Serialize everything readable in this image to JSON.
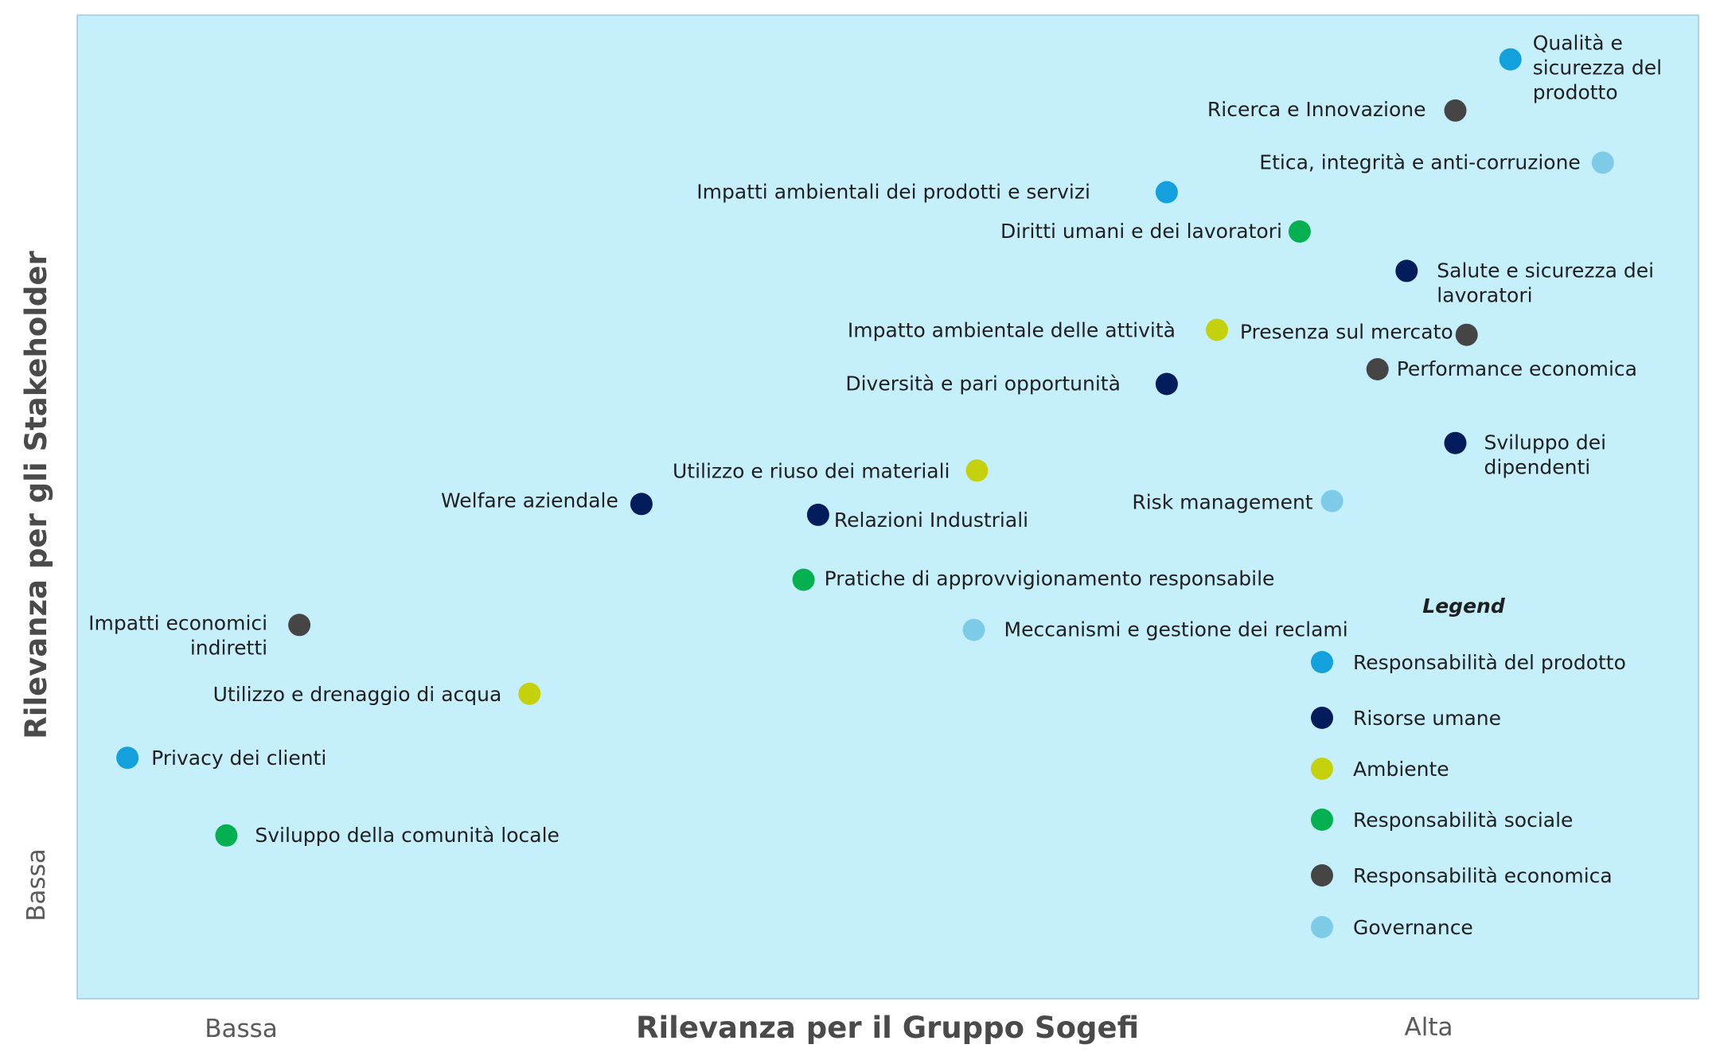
{
  "chart_data": {
    "type": "scatter",
    "xlabel": "Rilevanza per il Gruppo Sogefi",
    "ylabel": "Rilevanza per gli Stakeholder",
    "x_ticks": [
      "Bassa",
      "Alta"
    ],
    "y_ticks": [
      "Bassa"
    ],
    "xlim": [
      0,
      100
    ],
    "ylim": [
      0,
      100
    ],
    "legend": {
      "title": "Legend",
      "placement": "bottom-right"
    },
    "colors": {
      "Responsabilità del prodotto": "#13a0dc",
      "Risorse umane": "#031d5c",
      "Ambiente": "#c5d10c",
      "Responsabilità sociale": "#05b050",
      "Responsabilità economica": "#454545",
      "Governance": "#7ecbe8"
    },
    "series": [
      {
        "name": "Responsabilità del prodotto",
        "points": [
          {
            "label": "Qualità e sicurezza del prodotto",
            "x": 88.4,
            "y": 95.5
          },
          {
            "label": "Impatti ambientali dei prodotti e servizi",
            "x": 67.2,
            "y": 82.0
          },
          {
            "label": "Privacy dei clienti",
            "x": 3.1,
            "y": 24.5
          }
        ]
      },
      {
        "name": "Risorse umane",
        "points": [
          {
            "label": "Salute e sicurezza dei lavoratori",
            "x": 82.0,
            "y": 74.0
          },
          {
            "label": "Diversità e pari opportunità",
            "x": 67.2,
            "y": 62.5
          },
          {
            "label": "Sviluppo dei dipendenti",
            "x": 85.0,
            "y": 56.5
          },
          {
            "label": "Welfare aziendale",
            "x": 34.8,
            "y": 50.3
          },
          {
            "label": "Relazioni Industriali",
            "x": 45.7,
            "y": 49.2
          }
        ]
      },
      {
        "name": "Ambiente",
        "points": [
          {
            "label": "Impatto ambientale delle attività",
            "x": 70.3,
            "y": 68.0
          },
          {
            "label": "Utilizzo e riuso dei materiali",
            "x": 55.5,
            "y": 53.7
          },
          {
            "label": "Utilizzo e drenaggio di acqua",
            "x": 27.9,
            "y": 31.0
          }
        ]
      },
      {
        "name": "Responsabilità sociale",
        "points": [
          {
            "label": "Diritti umani e dei lavoratori",
            "x": 75.4,
            "y": 78.0
          },
          {
            "label": "Pratiche di approvvigionamento responsabile",
            "x": 44.8,
            "y": 42.6
          },
          {
            "label": "Sviluppo della comunità locale",
            "x": 9.2,
            "y": 16.6
          }
        ]
      },
      {
        "name": "Responsabilità economica",
        "points": [
          {
            "label": "Ricerca e Innovazione",
            "x": 85.0,
            "y": 90.3
          },
          {
            "label": "Presenza sul mercato",
            "x": 85.7,
            "y": 67.5
          },
          {
            "label": "Performance economica",
            "x": 80.2,
            "y": 64.0
          },
          {
            "label": "Impatti economici indiretti",
            "x": 13.7,
            "y": 38.0
          }
        ]
      },
      {
        "name": "Governance",
        "points": [
          {
            "label": "Etica, integrità e anti-corruzione",
            "x": 94.1,
            "y": 85.0
          },
          {
            "label": "Risk management",
            "x": 77.4,
            "y": 50.6
          },
          {
            "label": "Meccanismi e gestione dei reclami",
            "x": 55.3,
            "y": 37.5
          }
        ]
      }
    ]
  }
}
